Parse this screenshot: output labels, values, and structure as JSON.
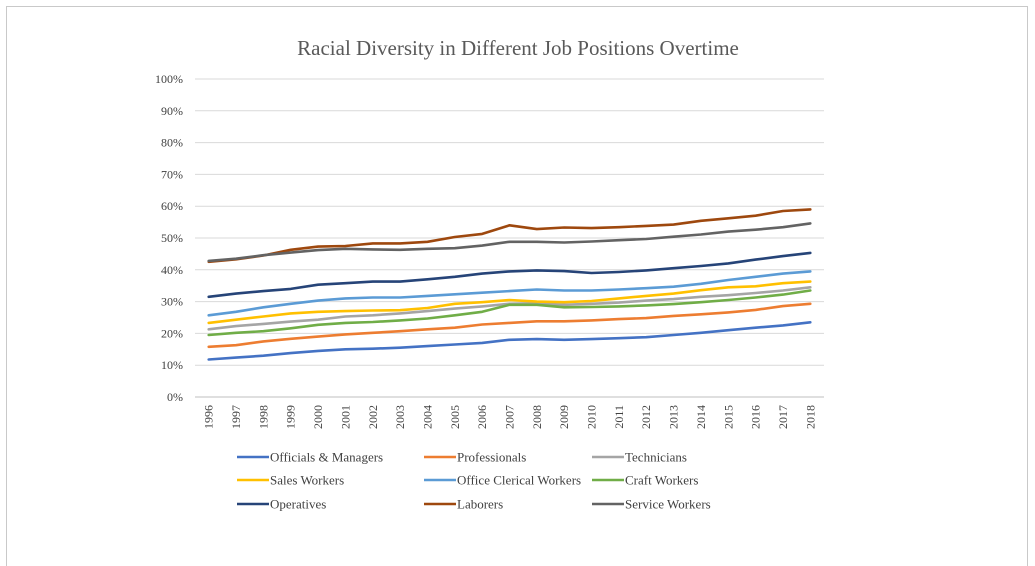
{
  "chart_data": {
    "type": "line",
    "title": "Racial Diversity in Different Job Positions Overtime",
    "xlabel": "",
    "ylabel": "",
    "ylim": [
      0,
      100
    ],
    "y_ticks": [
      "0%",
      "10%",
      "20%",
      "30%",
      "40%",
      "50%",
      "60%",
      "70%",
      "80%",
      "90%",
      "100%"
    ],
    "grid": true,
    "legend_position": "bottom",
    "x": [
      "1996",
      "1997",
      "1998",
      "1999",
      "2000",
      "2001",
      "2002",
      "2003",
      "2004",
      "2005",
      "2006",
      "2007",
      "2008",
      "2009",
      "2010",
      "2011",
      "2012",
      "2013",
      "2014",
      "2015",
      "2016",
      "2017",
      "2018"
    ],
    "series": [
      {
        "name": "Officials & Managers",
        "color": "#4472c4",
        "values": [
          11.8,
          12.4,
          13,
          13.8,
          14.5,
          15,
          15.2,
          15.5,
          16,
          16.5,
          17,
          18,
          18.2,
          18,
          18.2,
          18.5,
          18.8,
          19.5,
          20.2,
          21,
          21.8,
          22.5,
          23.5
        ]
      },
      {
        "name": "Professionals",
        "color": "#ed7d31",
        "values": [
          15.8,
          16.3,
          17.5,
          18.3,
          19,
          19.7,
          20.2,
          20.7,
          21.3,
          21.8,
          22.8,
          23.3,
          23.8,
          23.8,
          24.1,
          24.5,
          24.8,
          25.5,
          26,
          26.6,
          27.4,
          28.6,
          29.3
        ]
      },
      {
        "name": "Technicians",
        "color": "#a5a5a5",
        "values": [
          21.3,
          22.3,
          23,
          23.7,
          24.3,
          25.3,
          25.7,
          26.3,
          27,
          27.8,
          28.5,
          29.3,
          29.5,
          29,
          29.3,
          29.7,
          30.3,
          30.8,
          31.5,
          32,
          32.7,
          33.5,
          34.5
        ]
      },
      {
        "name": "Sales Workers",
        "color": "#ffc000",
        "values": [
          23.3,
          24.3,
          25.3,
          26.3,
          26.8,
          27,
          27.2,
          27.3,
          28,
          29.3,
          29.8,
          30.5,
          30,
          29.8,
          30.2,
          31,
          31.8,
          32.5,
          33.6,
          34.5,
          34.8,
          35.8,
          36.3
        ]
      },
      {
        "name": "Office Clerical Workers",
        "color": "#5b9bd5",
        "values": [
          25.7,
          26.8,
          28.2,
          29.3,
          30.3,
          31,
          31.3,
          31.3,
          31.8,
          32.3,
          32.8,
          33.3,
          33.8,
          33.5,
          33.5,
          33.8,
          34.2,
          34.7,
          35.6,
          36.8,
          37.8,
          38.8,
          39.5
        ]
      },
      {
        "name": "Craft Workers",
        "color": "#70ad47",
        "values": [
          19.5,
          20.2,
          20.7,
          21.6,
          22.7,
          23.3,
          23.6,
          24.1,
          24.7,
          25.7,
          26.8,
          29,
          29,
          28.2,
          28.3,
          28.5,
          28.8,
          29.2,
          29.8,
          30.5,
          31.3,
          32.2,
          33.5
        ]
      },
      {
        "name": "Operatives",
        "color": "#264478",
        "values": [
          31.5,
          32.5,
          33.3,
          34,
          35.3,
          35.8,
          36.3,
          36.3,
          37,
          37.8,
          38.8,
          39.5,
          39.8,
          39.6,
          39,
          39.3,
          39.8,
          40.5,
          41.2,
          42,
          43.2,
          44.3,
          45.3
        ]
      },
      {
        "name": "Laborers",
        "color": "#9e480e",
        "values": [
          42.5,
          43.3,
          44.5,
          46.3,
          47.3,
          47.5,
          48.3,
          48.3,
          48.8,
          50.3,
          51.3,
          54,
          52.8,
          53.3,
          53.1,
          53.4,
          53.8,
          54.2,
          55.4,
          56.2,
          57,
          58.5,
          59
        ]
      },
      {
        "name": "Service Workers",
        "color": "#636363",
        "values": [
          42.8,
          43.5,
          44.6,
          45.4,
          46.2,
          46.6,
          46.4,
          46.3,
          46.6,
          46.8,
          47.6,
          48.8,
          48.8,
          48.6,
          48.9,
          49.3,
          49.7,
          50.4,
          51.1,
          52,
          52.6,
          53.4,
          54.6
        ]
      }
    ]
  }
}
